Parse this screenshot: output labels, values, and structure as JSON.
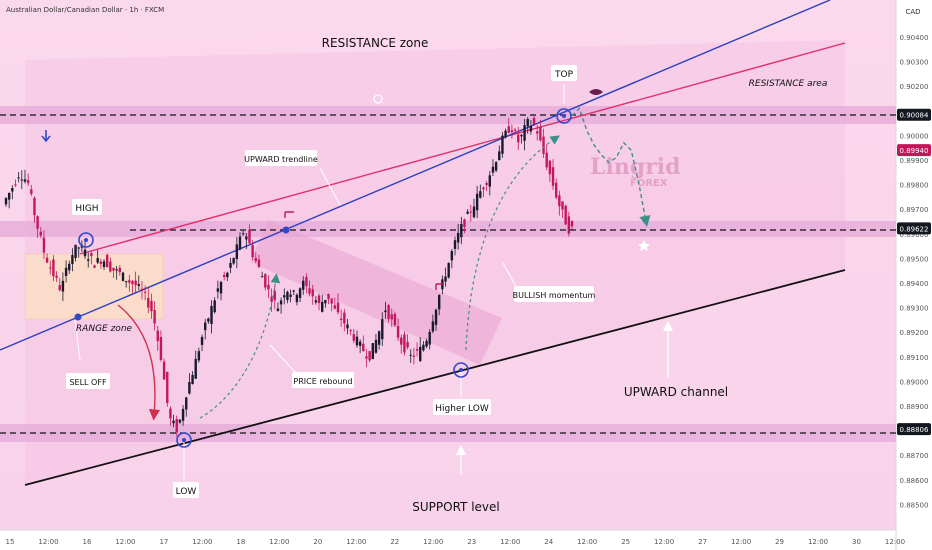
{
  "header": {
    "symbol_line": "Australian Dollar/Canadian Dollar · 1h · FXCM",
    "currency": "CAD"
  },
  "watermark": {
    "brand": "Lingrid",
    "sub": "FOREX"
  },
  "colors": {
    "background": "#fadcee",
    "zone_band": "#e9b6dc",
    "up_candle": "#1a1a2e",
    "down_candle": "#c2185b",
    "trendline_blue": "#2b3fbf",
    "resistance_line": "#e0306a",
    "channel_line": "#111111",
    "marker": "#3347c9",
    "arrow_teal": "#3d8f8a",
    "arrow_red": "#d0304f"
  },
  "annotations": {
    "resistance_zone": "RESISTANCE zone",
    "resistance_area": "RESISTANCE area",
    "top": "TOP",
    "upward_trendline": "UPWARD trendline",
    "high": "HIGH",
    "range_zone": "RANGE zone",
    "sell_off": "SELL OFF",
    "low": "LOW",
    "price_rebound": "PRICE rebound",
    "higher_low": "Higher LOW",
    "bullish_momentum": "BULLISH momentum",
    "upward_channel": "UPWARD channel",
    "support_level": "SUPPORT level"
  },
  "chart_data": {
    "type": "candlestick",
    "title": "Australian Dollar/Canadian Dollar · 1h · FXCM",
    "y_axis_unit": "CAD",
    "ylim": [
      0.8846,
      0.9109
    ],
    "y_ticks": [
      "0.90400",
      "0.90300",
      "0.90200",
      "0.90100",
      "0.90000",
      "0.89900",
      "0.89800",
      "0.89700",
      "0.89600",
      "0.89500",
      "0.89400",
      "0.89300",
      "0.89200",
      "0.89100",
      "0.89000",
      "0.88900",
      "0.88800",
      "0.88700",
      "0.88600",
      "0.88500"
    ],
    "x_ticks": [
      "15",
      "12:00",
      "16",
      "12:00",
      "17",
      "12:00",
      "18",
      "12:00",
      "20",
      "12:00",
      "22",
      "12:00",
      "23",
      "12:00",
      "24",
      "12:00",
      "25",
      "12:00",
      "27",
      "12:00",
      "29",
      "12:00",
      "30",
      "12:00"
    ],
    "price_labels": [
      {
        "value": 0.90084,
        "text": "0.90084",
        "style": "dark"
      },
      {
        "value": 0.8994,
        "text": "0.89940",
        "style": "red"
      },
      {
        "value": 0.89622,
        "text": "0.89622",
        "style": "dark"
      },
      {
        "value": 0.88806,
        "text": "0.88806",
        "style": "dark"
      }
    ],
    "levels": [
      {
        "name": "resistance",
        "value": 0.90084
      },
      {
        "name": "mid",
        "value": 0.89622
      },
      {
        "name": "support",
        "value": 0.88806
      }
    ],
    "close_path": [
      0.8972,
      0.8978,
      0.8985,
      0.8981,
      0.8965,
      0.8952,
      0.8944,
      0.8937,
      0.895,
      0.8955,
      0.8952,
      0.8948,
      0.895,
      0.8946,
      0.8944,
      0.8941,
      0.8939,
      0.8935,
      0.8928,
      0.891,
      0.8885,
      0.888,
      0.8895,
      0.8906,
      0.8919,
      0.8929,
      0.8939,
      0.8944,
      0.8953,
      0.8962,
      0.8952,
      0.8944,
      0.8936,
      0.893,
      0.8938,
      0.8935,
      0.894,
      0.8936,
      0.8931,
      0.8935,
      0.8928,
      0.8924,
      0.8919,
      0.8914,
      0.891,
      0.8918,
      0.893,
      0.8922,
      0.8915,
      0.891,
      0.8912,
      0.8918,
      0.893,
      0.8942,
      0.8953,
      0.8962,
      0.8968,
      0.8975,
      0.8981,
      0.8988,
      0.8998,
      0.9004,
      0.8997,
      0.9005,
      0.9004,
      0.8992,
      0.8981,
      0.897,
      0.8962
    ],
    "projection": [
      0.9008,
      0.9011,
      0.9002,
      0.8996,
      0.8992,
      0.8989,
      0.8991,
      0.8997,
      0.8994,
      0.8981,
      0.8965
    ],
    "trend_lines": [
      {
        "name": "upward-trendline",
        "points": [
          [
            "14 20:00",
            0.8913
          ],
          [
            "26 12:00",
            0.9047
          ]
        ]
      },
      {
        "name": "resistance-line",
        "points": [
          [
            "16 06:00",
            0.897
          ],
          [
            "26 06:00",
            0.9039
          ]
        ]
      },
      {
        "name": "channel-support",
        "points": [
          [
            "15 00:00",
            0.8862
          ],
          [
            "26 06:00",
            0.8952
          ]
        ]
      }
    ]
  }
}
